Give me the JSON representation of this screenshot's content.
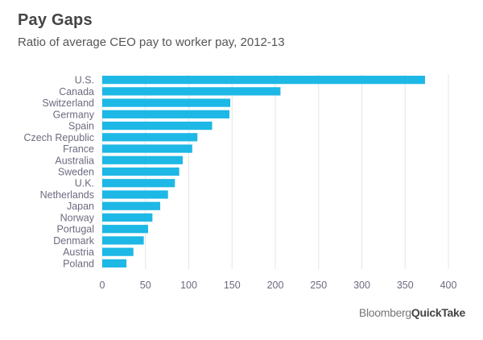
{
  "chart_data": {
    "type": "bar",
    "orientation": "horizontal",
    "title": "Pay Gaps",
    "subtitle": "Ratio of average CEO pay to worker pay, 2012-13",
    "categories": [
      "U.S.",
      "Canada",
      "Switzerland",
      "Germany",
      "Spain",
      "Czech Republic",
      "France",
      "Australia",
      "Sweden",
      "U.K.",
      "Netherlands",
      "Japan",
      "Norway",
      "Portugal",
      "Denmark",
      "Austria",
      "Poland"
    ],
    "values": [
      373,
      206,
      148,
      147,
      127,
      110,
      104,
      93,
      89,
      84,
      76,
      67,
      58,
      53,
      48,
      36,
      28
    ],
    "xlim": [
      0,
      400
    ],
    "xticks": [
      0,
      50,
      100,
      150,
      200,
      250,
      300,
      350,
      400
    ],
    "color": "#1db8e6",
    "grid": true
  },
  "brand": {
    "part1": "Bloomberg",
    "part2": "QuickTake"
  }
}
